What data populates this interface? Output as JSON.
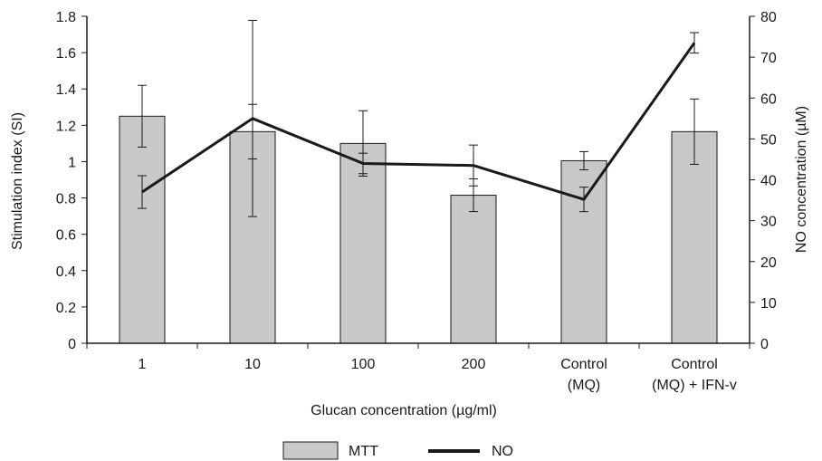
{
  "chart_data": {
    "type": "bar",
    "categories": [
      [
        "1"
      ],
      [
        "10"
      ],
      [
        "100"
      ],
      [
        "200"
      ],
      [
        "Control",
        "(MQ)"
      ],
      [
        "Control",
        "(MQ) + IFN-v"
      ]
    ],
    "xlabel": "Glucan concentration (µg/ml)",
    "ylabel_left": "Stimulation index (SI)",
    "ylabel_right": "NO concentration (µM)",
    "ylim_left": [
      0,
      1.8
    ],
    "ylim_right": [
      0,
      80
    ],
    "yticks_left": [
      "0",
      "0.2",
      "0.4",
      "0.6",
      "0.8",
      "1",
      "1.2",
      "1.4",
      "1.6",
      "1.8"
    ],
    "yticks_right": [
      "0",
      "10",
      "20",
      "30",
      "40",
      "50",
      "60",
      "70",
      "80"
    ],
    "grid": false,
    "legend_position": "bottom",
    "series": [
      {
        "name": "MTT",
        "kind": "bar",
        "axis": "left",
        "color": "#c8c8c8",
        "values": [
          1.25,
          1.165,
          1.1,
          0.815,
          1.005,
          1.165
        ],
        "error": [
          0.17,
          0.15,
          0.18,
          0.09,
          0.05,
          0.18
        ]
      },
      {
        "name": "NO",
        "kind": "line",
        "axis": "right",
        "color": "#1a1a1a",
        "values": [
          37,
          55,
          44,
          43.5,
          35.2,
          73.5
        ],
        "error": [
          4,
          24,
          2.5,
          5,
          3,
          2.5
        ]
      }
    ]
  }
}
